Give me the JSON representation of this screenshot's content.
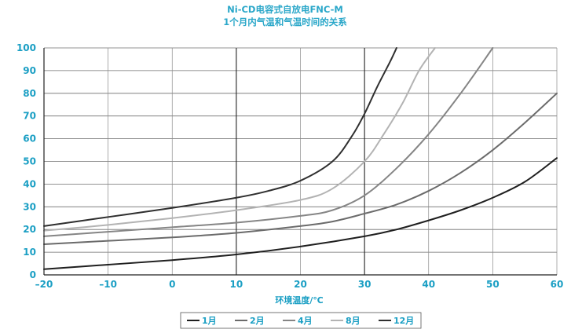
{
  "chart_data": {
    "type": "line",
    "title_lines": [
      "Ni-CD电容式自放电FNC-M",
      "1个月内气温和气温时间的关系"
    ],
    "xlabel": "环境温度/℃",
    "ylabel": "",
    "xlim": [
      -20,
      60
    ],
    "ylim": [
      0,
      100
    ],
    "x_ticks": [
      -20,
      -10,
      0,
      10,
      20,
      30,
      40,
      50,
      60
    ],
    "y_ticks": [
      0,
      10,
      20,
      30,
      40,
      50,
      60,
      70,
      80,
      90,
      100
    ],
    "x_tick_labels": [
      "–20",
      "–10",
      "0",
      "10",
      "20",
      "30",
      "40",
      "50",
      "60"
    ],
    "y_tick_labels": [
      "0",
      "10",
      "20",
      "30",
      "40",
      "50",
      "60",
      "70",
      "80",
      "90",
      "100"
    ],
    "major_gridlines_y": [
      10,
      20,
      30,
      40,
      50,
      60,
      70,
      80,
      90,
      100
    ],
    "major_gridlines_x": [
      -20,
      -10,
      0,
      10,
      20,
      30,
      40,
      50,
      60
    ],
    "emphasized_gridlines_x": [
      10,
      30
    ],
    "legend_position": "bottom",
    "series": [
      {
        "name": "1月",
        "color": "#1f1f1f",
        "points": [
          [
            -20,
            2.5
          ],
          [
            -10,
            4.5
          ],
          [
            0,
            6.5
          ],
          [
            10,
            9
          ],
          [
            20,
            12.5
          ],
          [
            30,
            17
          ],
          [
            35,
            20
          ],
          [
            40,
            24
          ],
          [
            45,
            28.5
          ],
          [
            50,
            34
          ],
          [
            55,
            41
          ],
          [
            60,
            51.5
          ]
        ]
      },
      {
        "name": "2月",
        "color": "#6b6b6b",
        "points": [
          [
            -20,
            13.5
          ],
          [
            -10,
            15
          ],
          [
            0,
            16.5
          ],
          [
            10,
            18.5
          ],
          [
            20,
            21.5
          ],
          [
            25,
            23.5
          ],
          [
            30,
            27
          ],
          [
            35,
            31
          ],
          [
            40,
            37
          ],
          [
            45,
            45
          ],
          [
            50,
            55
          ],
          [
            55,
            67
          ],
          [
            60,
            80
          ]
        ]
      },
      {
        "name": "4月",
        "color": "#858585",
        "points": [
          [
            -20,
            17
          ],
          [
            -10,
            19
          ],
          [
            0,
            21
          ],
          [
            10,
            23
          ],
          [
            20,
            26
          ],
          [
            25,
            28.5
          ],
          [
            30,
            35
          ],
          [
            35,
            47
          ],
          [
            40,
            62
          ],
          [
            45,
            80
          ],
          [
            50,
            100
          ]
        ]
      },
      {
        "name": "8月",
        "color": "#b3b3b3",
        "points": [
          [
            -20,
            19.5
          ],
          [
            -10,
            22
          ],
          [
            0,
            25
          ],
          [
            10,
            28.5
          ],
          [
            20,
            33
          ],
          [
            25,
            38
          ],
          [
            30,
            50
          ],
          [
            33,
            62
          ],
          [
            36,
            76
          ],
          [
            38.5,
            90
          ],
          [
            41,
            100
          ]
        ]
      },
      {
        "name": "12月",
        "color": "#2f2f2f",
        "points": [
          [
            -20,
            21.5
          ],
          [
            -10,
            25.5
          ],
          [
            0,
            29.5
          ],
          [
            10,
            34
          ],
          [
            15,
            37
          ],
          [
            20,
            41.5
          ],
          [
            25,
            50
          ],
          [
            28,
            61
          ],
          [
            30,
            71
          ],
          [
            32,
            83
          ],
          [
            34,
            94
          ],
          [
            35,
            100
          ]
        ]
      }
    ]
  }
}
